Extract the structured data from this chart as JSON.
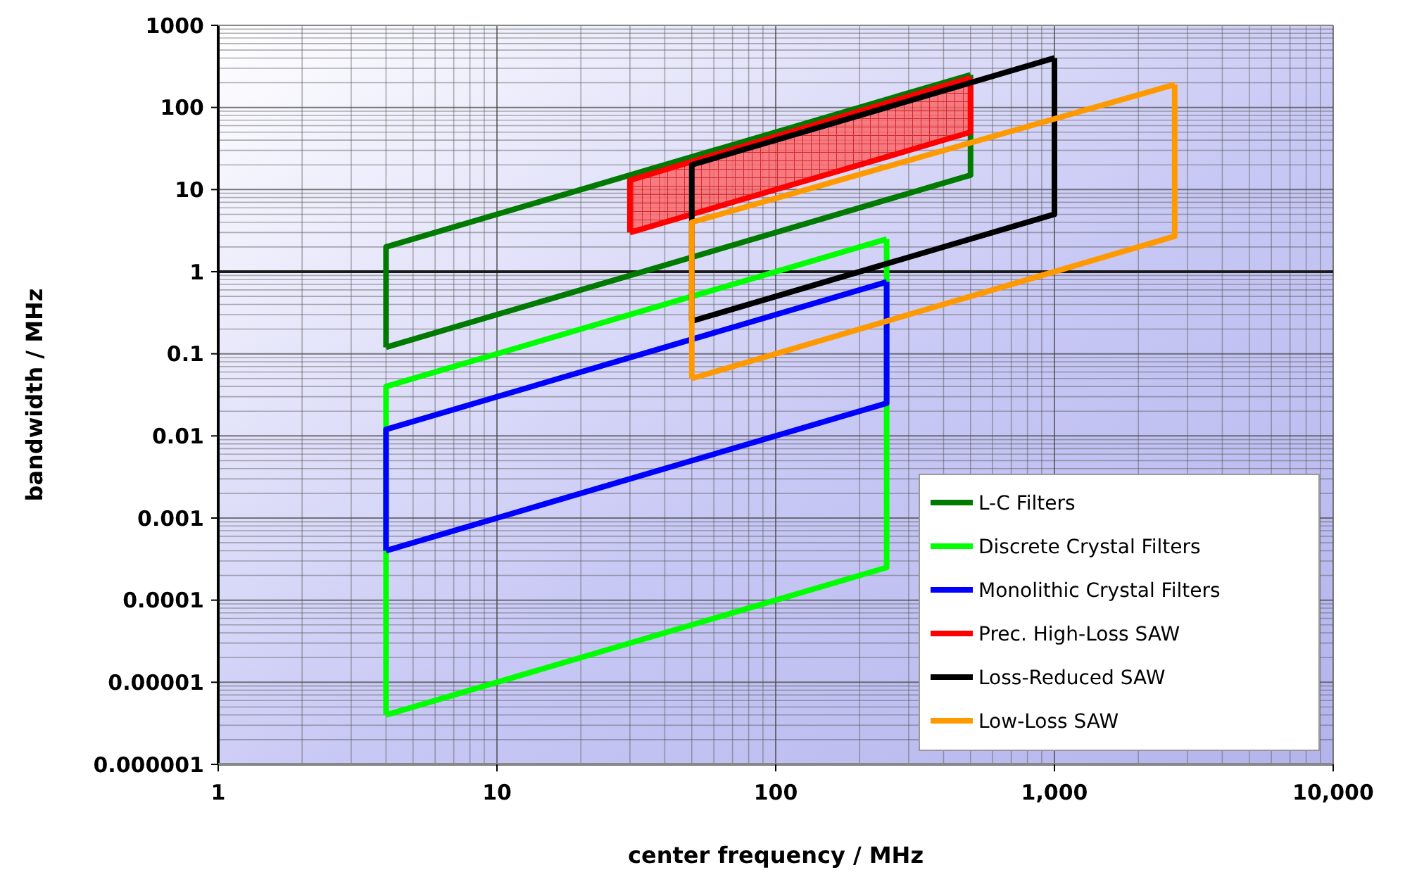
{
  "chart_data": {
    "type": "line",
    "xlabel": "center frequency / MHz",
    "ylabel": "bandwidth / MHz",
    "log": "xy",
    "grid": true,
    "legend": "bottom right",
    "line_style": "solid",
    "xlim": [
      1,
      10000
    ],
    "xticks": [
      1,
      10,
      100,
      {
        "value": 1000,
        "label": "1,000"
      },
      {
        "value": 10000,
        "label": "10,000"
      }
    ],
    "ylim": [
      1e-06,
      1000
    ],
    "yticks": [
      {
        "value": 1e-06,
        "label": "0.000001"
      },
      {
        "value": 1e-05,
        "label": "0.00001"
      },
      0.0001,
      0.001,
      0.01,
      0.1,
      1,
      10,
      100,
      1000
    ],
    "ref_lines": [
      {
        "axis": "y",
        "value": 1,
        "color": "#1a1a1a"
      }
    ],
    "series": [
      {
        "name": "L-C Filters",
        "color": "#007a00",
        "x": [
          4,
          4,
          500
        ],
        "values": [
          0.12,
          2,
          250
        ]
      },
      {
        "color": "#007a00",
        "x": [
          4,
          500,
          500
        ],
        "values": [
          0.12,
          15,
          250
        ]
      },
      {
        "name": "Discrete Crystal Filters",
        "color": "#00ff00",
        "x": [
          4,
          4,
          250
        ],
        "values": [
          4e-06,
          0.04,
          2.5
        ]
      },
      {
        "color": "#00ff00",
        "x": [
          4,
          250,
          250
        ],
        "values": [
          4e-06,
          0.00025,
          2.5
        ]
      },
      {
        "name": "Monolithic Crystal Filters",
        "color": "#0000ff",
        "x": [
          4,
          4,
          250
        ],
        "values": [
          0.0004,
          0.012,
          0.75
        ]
      },
      {
        "color": "#0000ff",
        "x": [
          4,
          250,
          250
        ],
        "values": [
          0.0004,
          0.025,
          0.75
        ]
      },
      {
        "name": "Prec. High-Loss SAW",
        "color": "#ff0000",
        "x": [
          30,
          30,
          500
        ],
        "values": [
          3,
          13,
          230
        ],
        "lower": [
          3,
          3,
          50
        ],
        "upper": [
          13,
          13,
          230
        ]
      },
      {
        "color": "#ff0000",
        "x": [
          30,
          500,
          500
        ],
        "values": [
          3,
          50,
          230
        ]
      },
      {
        "name": "Loss-Reduced SAW",
        "color": "#000000",
        "x": [
          50,
          50,
          1000
        ],
        "values": [
          0.25,
          20,
          400
        ]
      },
      {
        "color": "#000000",
        "x": [
          50,
          1000,
          1000
        ],
        "values": [
          0.25,
          5,
          400
        ]
      },
      {
        "name": "Low-Loss SAW",
        "color": "#ff9900",
        "x": [
          50,
          50,
          2700
        ],
        "values": [
          0.05,
          4,
          190
        ]
      },
      {
        "color": "#ff9900",
        "x": [
          50,
          2700,
          2700
        ],
        "values": [
          0.05,
          2.7,
          190
        ]
      }
    ]
  }
}
